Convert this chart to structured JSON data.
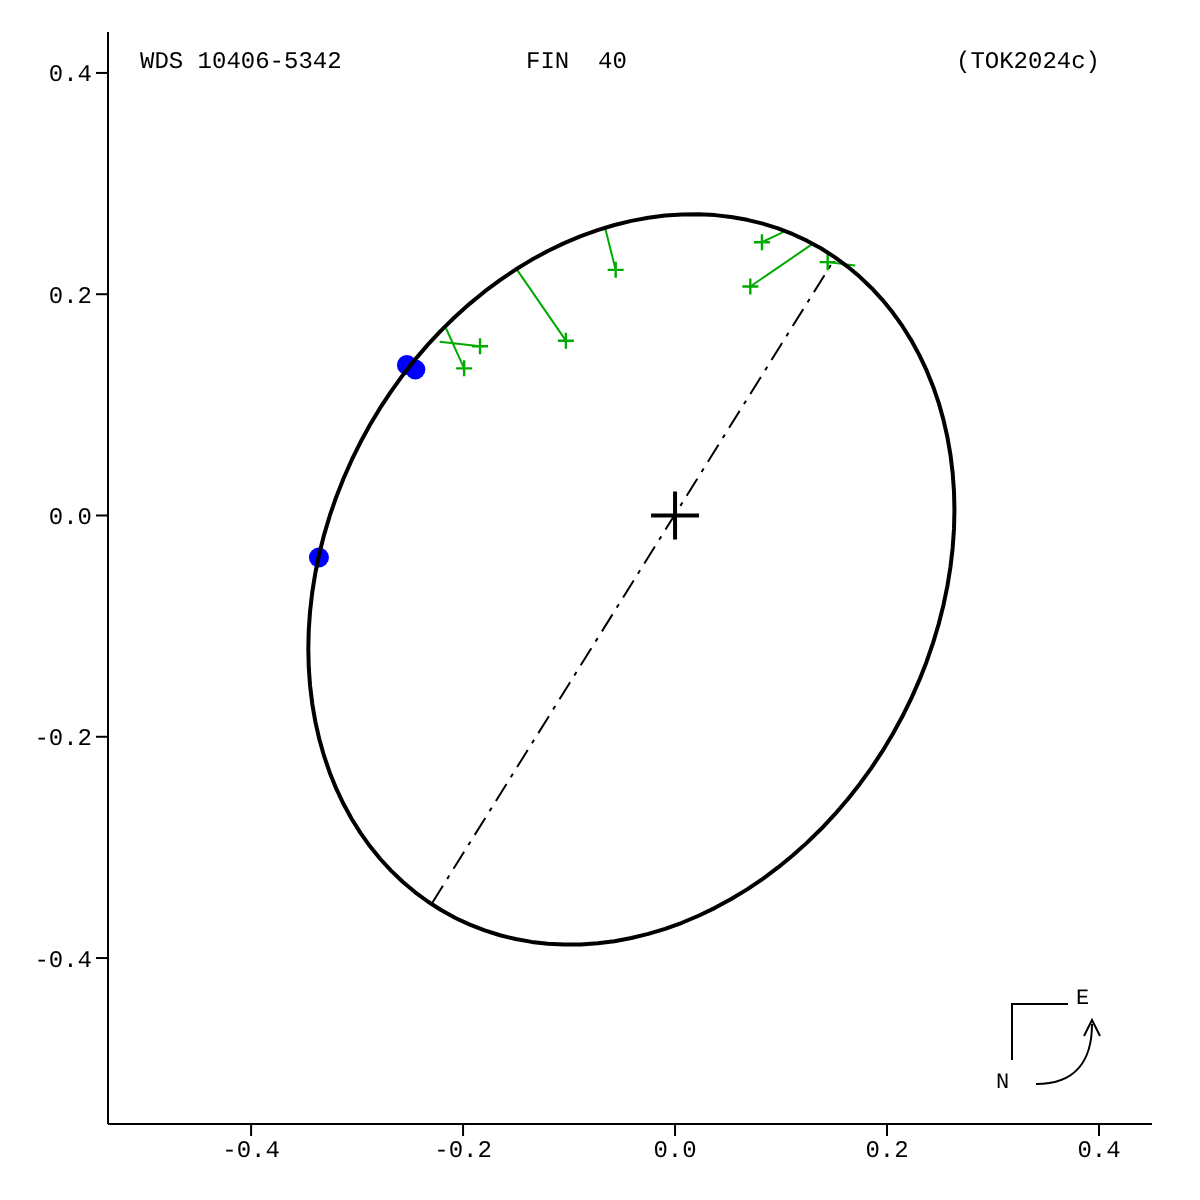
{
  "chart_data": {
    "type": "scatter",
    "title": "WDS 10406-5342",
    "subtitle": "FIN  40",
    "annotations": [
      "(TOK2024c)",
      "N",
      "E"
    ],
    "xlim": [
      -0.535,
      0.45
    ],
    "ylim": [
      -0.55,
      0.437
    ],
    "xticks": [
      -0.4,
      -0.2,
      {
        "value": 0,
        "label": "0.0"
      },
      0.2,
      0.4
    ],
    "yticks": [
      -0.4,
      -0.2,
      {
        "value": 0,
        "label": "0.0"
      },
      0.2,
      0.4
    ],
    "grid": false,
    "legend": false,
    "series": [
      {
        "type": "line",
        "color": "#000000",
        "marker": "none",
        "line_style": "dashed",
        "x": [
          -0.229,
          0.15
        ],
        "values": [
          -0.35,
          0.231
        ]
      },
      {
        "type": "line",
        "color": "#00aa00",
        "marker": "none",
        "line_style": "solid",
        "x": [
          -0.184,
          -0.222
        ],
        "values": [
          0.153,
          0.157
        ]
      },
      {
        "type": "line",
        "color": "#00aa00",
        "marker": "none",
        "line_style": "solid",
        "x": [
          -0.199,
          -0.216
        ],
        "values": [
          0.133,
          0.169
        ]
      },
      {
        "type": "line",
        "color": "#00aa00",
        "marker": "none",
        "line_style": "solid",
        "x": [
          -0.103,
          -0.149
        ],
        "values": [
          0.158,
          0.222
        ]
      },
      {
        "type": "line",
        "color": "#00aa00",
        "marker": "none",
        "line_style": "solid",
        "x": [
          -0.056,
          -0.066
        ],
        "values": [
          0.222,
          0.26
        ]
      },
      {
        "type": "line",
        "color": "#00aa00",
        "marker": "none",
        "line_style": "solid",
        "x": [
          0.082,
          0.104
        ],
        "values": [
          0.247,
          0.257
        ]
      },
      {
        "type": "line",
        "color": "#00aa00",
        "marker": "none",
        "line_style": "solid",
        "x": [
          0.071,
          0.129
        ],
        "values": [
          0.207,
          0.245
        ]
      },
      {
        "type": "line",
        "color": "#00aa00",
        "marker": "none",
        "line_style": "solid",
        "x": [
          0.144,
          0.17
        ],
        "values": [
          0.229,
          0.226
        ]
      },
      {
        "color": "#00aa00",
        "marker": "cross",
        "x": [
          -0.184,
          -0.199,
          -0.103,
          -0.056,
          0.082,
          0.071,
          0.144
        ],
        "values": [
          0.153,
          0.133,
          0.158,
          0.222,
          0.247,
          0.207,
          0.229
        ]
      },
      {
        "color": "#0000ff",
        "marker": "circle",
        "x": [
          -0.253,
          -0.245,
          -0.336
        ],
        "values": [
          0.136,
          0.132,
          -0.038
        ]
      },
      {
        "color": "#000000",
        "marker": "cross",
        "x": [
          0
        ],
        "values": [
          0
        ]
      }
    ]
  }
}
